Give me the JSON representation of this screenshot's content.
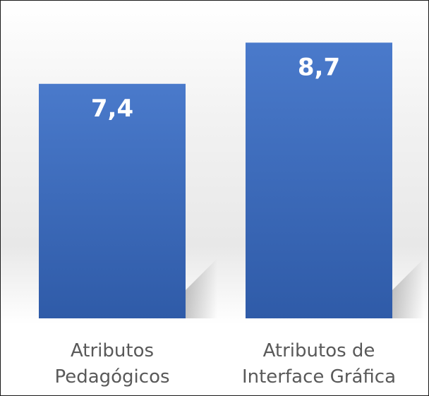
{
  "chart_data": {
    "type": "bar",
    "categories": [
      [
        "Atributos",
        "Pedagógicos"
      ],
      [
        "Atributos de",
        "Interface Gráfica"
      ]
    ],
    "values": [
      7.4,
      8.7
    ],
    "data_labels": [
      "7,4",
      "8,7"
    ],
    "title": "",
    "xlabel": "",
    "ylabel": "",
    "ylim": [
      0,
      9.8
    ],
    "grid": false,
    "legend": "none",
    "bar_color": "#4472C4"
  }
}
